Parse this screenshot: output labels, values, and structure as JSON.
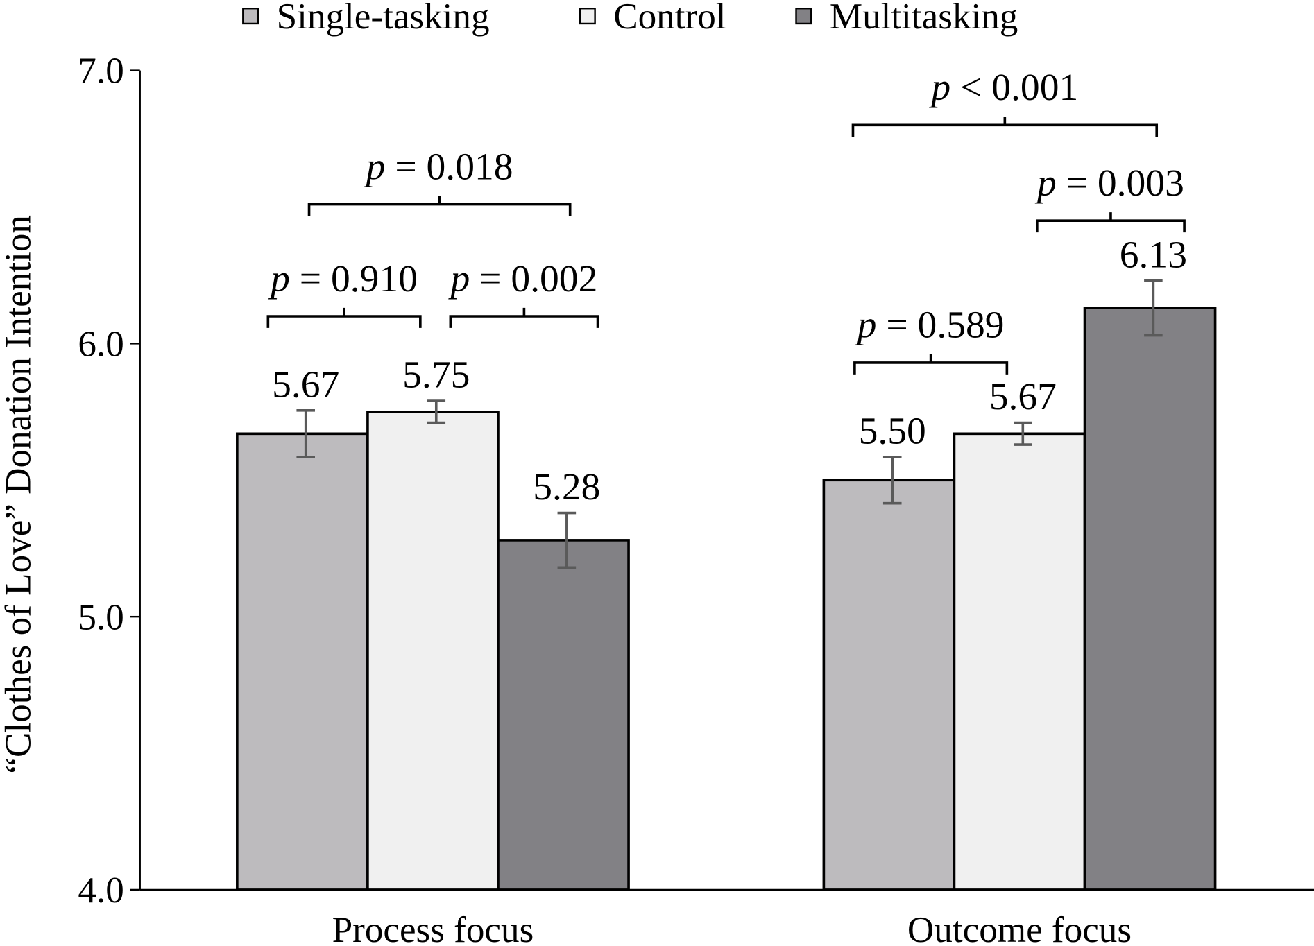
{
  "chart_data": {
    "type": "bar",
    "title": "",
    "xlabel": "",
    "ylabel": "“Clothes of Love” Donation Intention",
    "ylim": [
      4.0,
      7.0
    ],
    "yticks": [
      "4.0",
      "5.0",
      "6.0",
      "7.0"
    ],
    "categories": [
      "Process focus",
      "Outcome focus"
    ],
    "legend_position": "top",
    "grid": false,
    "series": [
      {
        "name": "Single-tasking",
        "color": "#bdbbbe",
        "values": [
          5.67,
          5.5
        ],
        "labels": [
          "5.67",
          "5.50"
        ],
        "errors": [
          0.085,
          0.085
        ]
      },
      {
        "name": "Control",
        "color": "#f0f0f0",
        "values": [
          5.75,
          5.67
        ],
        "labels": [
          "5.75",
          "5.67"
        ],
        "errors": [
          0.04,
          0.04
        ]
      },
      {
        "name": "Multitasking",
        "color": "#828185",
        "values": [
          5.28,
          6.13
        ],
        "labels": [
          "5.28",
          "6.13"
        ],
        "errors": [
          0.1,
          0.1
        ]
      }
    ],
    "error_bar_color": "#5a5a5a",
    "annotations": [
      {
        "category": 0,
        "from": 0,
        "to": 1,
        "p": "p",
        "text": " = 0.910",
        "y": 6.1
      },
      {
        "category": 0,
        "from": 1,
        "to": 2,
        "p": "p",
        "text": " = 0.002",
        "y": 6.1
      },
      {
        "category": 0,
        "from": 0,
        "to": 2,
        "p": "p",
        "text": " = 0.018",
        "y": 6.51
      },
      {
        "category": 1,
        "from": 0,
        "to": 1,
        "p": "p",
        "text": " = 0.589",
        "y": 5.93
      },
      {
        "category": 1,
        "from": 1,
        "to": 2,
        "p": "p",
        "text": " = 0.003",
        "y": 6.45
      },
      {
        "category": 1,
        "from": 0,
        "to": 2,
        "p": "p",
        "text": " < 0.001",
        "y": 6.8
      }
    ]
  }
}
